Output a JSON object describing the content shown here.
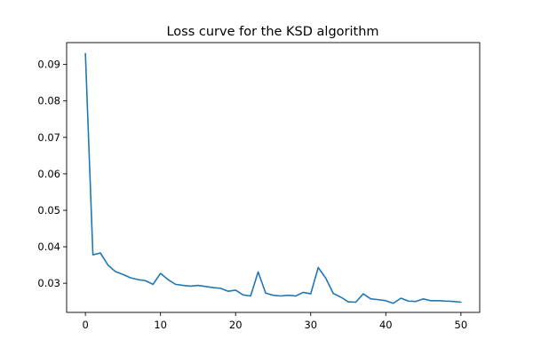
{
  "chart_data": {
    "type": "line",
    "title": "Loss curve for the KSD algorithm",
    "xlabel": "",
    "ylabel": "",
    "xlim": [
      -2.5,
      52.5
    ],
    "ylim": [
      0.022,
      0.096
    ],
    "xticks": [
      0,
      10,
      20,
      30,
      40,
      50
    ],
    "yticks": [
      0.03,
      0.04,
      0.05,
      0.06,
      0.07,
      0.08,
      0.09
    ],
    "x_tick_labels": [
      "0",
      "10",
      "20",
      "30",
      "40",
      "50"
    ],
    "y_tick_labels": [
      "0.03",
      "0.04",
      "0.05",
      "0.06",
      "0.07",
      "0.08",
      "0.09"
    ],
    "grid": false,
    "legend": false,
    "series": [
      {
        "color": "#1f77b4",
        "x": [
          0,
          1,
          2,
          3,
          4,
          5,
          6,
          7,
          8,
          9,
          10,
          11,
          12,
          13,
          14,
          15,
          16,
          17,
          18,
          19,
          20,
          21,
          22,
          23,
          24,
          25,
          26,
          27,
          28,
          29,
          30,
          31,
          32,
          33,
          34,
          35,
          36,
          37,
          38,
          39,
          40,
          41,
          42,
          43,
          44,
          45,
          46,
          47,
          48,
          49,
          50
        ],
        "values": [
          0.093,
          0.0378,
          0.0383,
          0.035,
          0.0332,
          0.0324,
          0.0315,
          0.031,
          0.0307,
          0.0297,
          0.0327,
          0.031,
          0.0297,
          0.0294,
          0.0292,
          0.0294,
          0.0291,
          0.0288,
          0.0286,
          0.0278,
          0.0281,
          0.0268,
          0.0265,
          0.0331,
          0.0273,
          0.0267,
          0.0265,
          0.0267,
          0.0265,
          0.0275,
          0.0271,
          0.0343,
          0.0314,
          0.0272,
          0.0262,
          0.0249,
          0.0248,
          0.0271,
          0.0257,
          0.0255,
          0.0252,
          0.0245,
          0.0259,
          0.0251,
          0.025,
          0.0257,
          0.0252,
          0.0252,
          0.0251,
          0.025,
          0.0248
        ]
      }
    ]
  }
}
